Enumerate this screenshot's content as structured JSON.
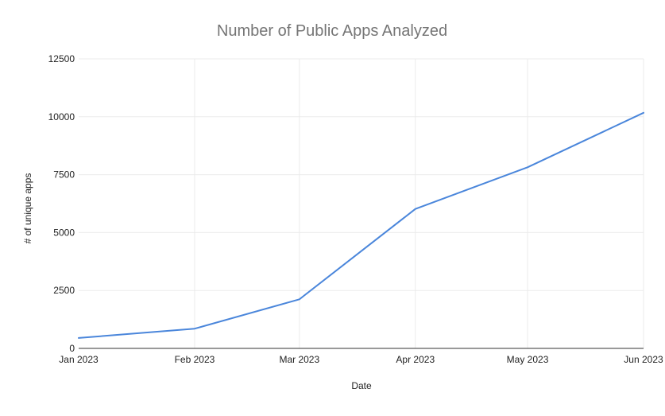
{
  "chart_data": {
    "type": "line",
    "title": "Number of Public Apps Analyzed",
    "xlabel": "Date",
    "ylabel": "# of unique apps",
    "categories": [
      "Jan 2023",
      "Feb 2023",
      "Mar 2023",
      "Apr 2023",
      "May 2023",
      "Jun 2023"
    ],
    "x": [
      "2023-01-01",
      "2023-02-01",
      "2023-03-01",
      "2023-04-01",
      "2023-05-01",
      "2023-06-01"
    ],
    "series": [
      {
        "values": [
          450,
          850,
          2120,
          6020,
          7820,
          10170
        ],
        "color": "#4a86db"
      }
    ],
    "ylim": [
      0,
      12500
    ],
    "yticks": [
      "0",
      "2500",
      "5000",
      "7500",
      "10000",
      "12500"
    ],
    "grid": true,
    "legend": "none"
  },
  "colors": {
    "title": "#757575",
    "axis_text": "#222222",
    "grid": "#ebebeb",
    "axis_line": "#333333",
    "line": "#4a86db"
  }
}
